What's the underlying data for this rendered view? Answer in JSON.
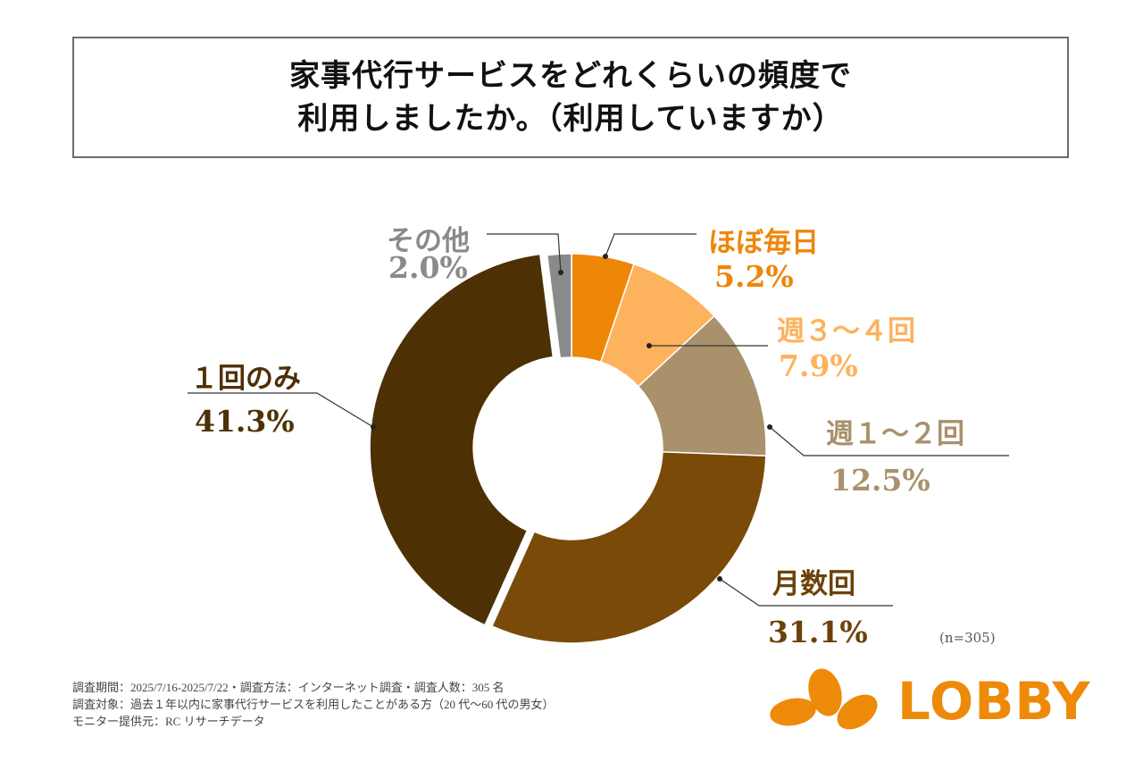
{
  "title_lines": [
    "家事代行サービスをどれくらいの頻度で",
    "利用しましたか。（利用していますか）"
  ],
  "chart_data": {
    "type": "pie",
    "style": "donut",
    "start": "top, clockwise",
    "categories": [
      "ほぼ毎日",
      "週３～４回",
      "週１～２回",
      "月数回",
      "１回のみ",
      "その他"
    ],
    "values": [
      5.2,
      7.9,
      12.5,
      31.1,
      41.3,
      2.0
    ],
    "labels": [
      "5.2%",
      "7.9%",
      "12.5%",
      "31.1%",
      "41.3%",
      "2.0%"
    ],
    "colors": [
      "#ee8608",
      "#fdb25e",
      "#a8916b",
      "#7a4a08",
      "#4e3005",
      "#8a8a8a"
    ],
    "label_colors": [
      "#ee8608",
      "#fdb25e",
      "#a8916b",
      "#6b4208",
      "#4e3005",
      "#8a8a8a"
    ]
  },
  "sample_size": "(n=305)",
  "notes": [
    "調査期間：2025/7/16-2025/7/22・調査方法：インターネット調査・調査人数：305 名",
    "調査対象：過去１年以内に家事代行サービスを利用したことがある方（20 代～60 代の男女）",
    "モニター提供元：RC リサーチデータ"
  ],
  "logo": {
    "text": "LOBBY",
    "color": "#ee8a0a"
  }
}
